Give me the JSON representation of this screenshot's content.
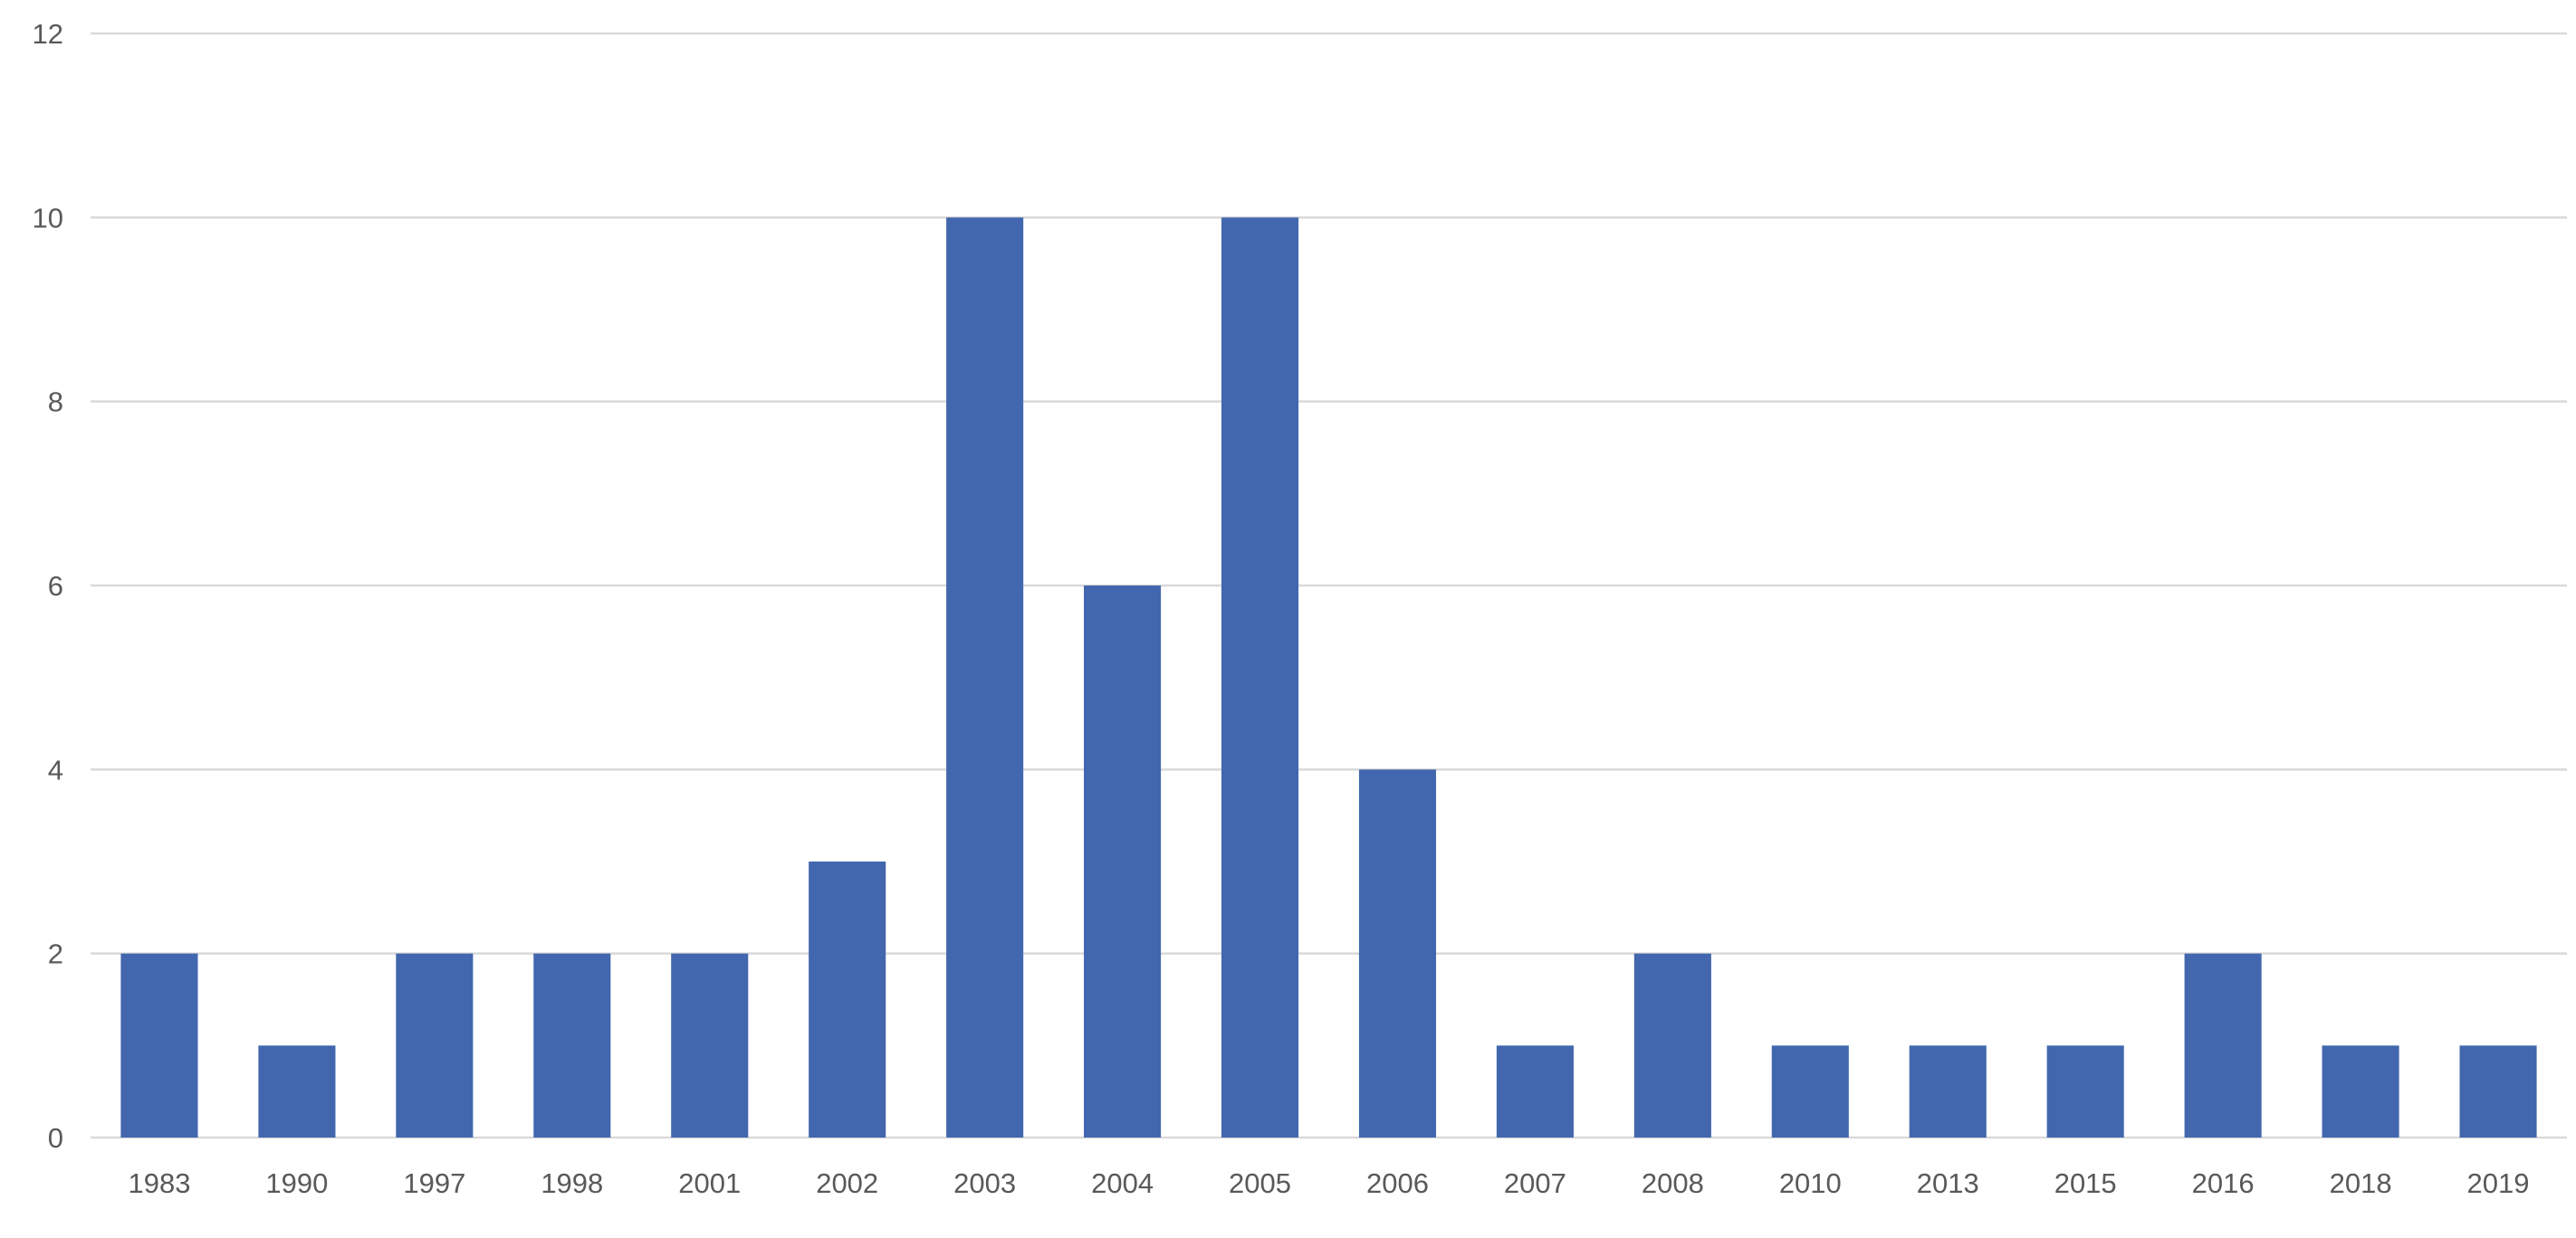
{
  "chart_data": {
    "type": "bar",
    "title": "",
    "xlabel": "",
    "ylabel": "",
    "categories": [
      "1983",
      "1990",
      "1997",
      "1998",
      "2001",
      "2002",
      "2003",
      "2004",
      "2005",
      "2006",
      "2007",
      "2008",
      "2010",
      "2013",
      "2015",
      "2016",
      "2018",
      "2019"
    ],
    "series": [
      {
        "values": [
          2,
          1,
          2,
          2,
          2,
          3,
          10,
          6,
          10,
          4,
          1,
          2,
          1,
          1,
          1,
          2,
          1,
          1
        ],
        "color": "#4267AE"
      }
    ],
    "ylim": [
      0,
      12
    ],
    "yticks": [
      0,
      2,
      4,
      6,
      8,
      10,
      12
    ],
    "grid": "horizontal",
    "legend": "none"
  }
}
